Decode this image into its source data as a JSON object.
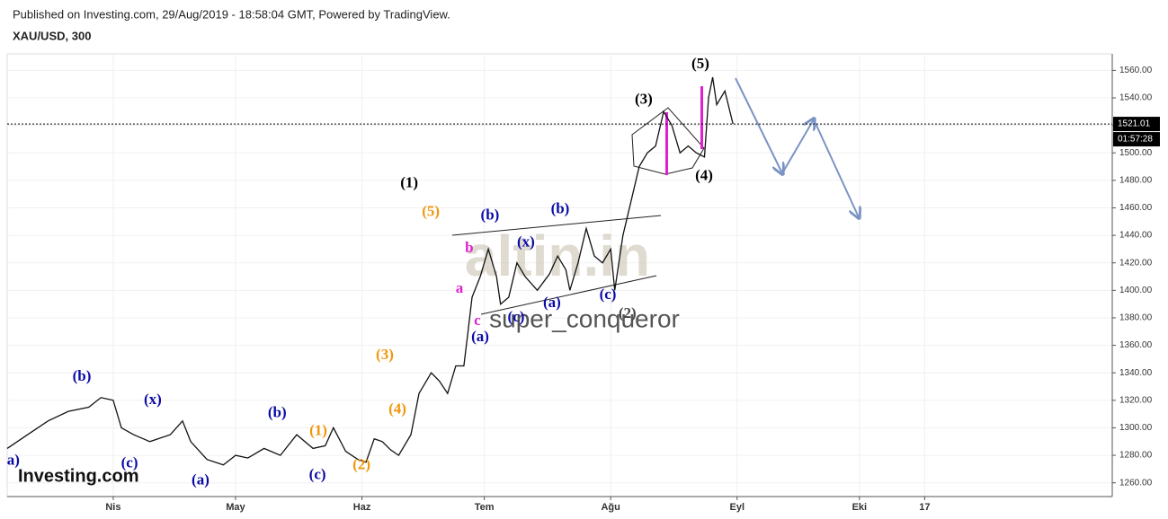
{
  "header": {
    "published": "Published on Investing.com, 29/Aug/2019 - 18:58:04 GMT, Powered by TradingView.",
    "symbol": "XAU/USD, 300"
  },
  "chart_data": {
    "type": "line",
    "xlim": [
      65,
      336
    ],
    "ylim": [
      1250,
      1572
    ],
    "xticks": [
      {
        "value": 91,
        "label": "Nis"
      },
      {
        "value": 121,
        "label": "May"
      },
      {
        "value": 152,
        "label": "Haz"
      },
      {
        "value": 182,
        "label": "Tem"
      },
      {
        "value": 213,
        "label": "Ağu"
      },
      {
        "value": 244,
        "label": "Eyl"
      },
      {
        "value": 274,
        "label": "Eki"
      },
      {
        "value": 290,
        "label": "17"
      }
    ],
    "yticks": [
      {
        "value": 1260,
        "label": "1260.00"
      },
      {
        "value": 1280,
        "label": "1280.00"
      },
      {
        "value": 1300,
        "label": "1300.00"
      },
      {
        "value": 1320,
        "label": "1320.00"
      },
      {
        "value": 1340,
        "label": "1340.00"
      },
      {
        "value": 1360,
        "label": "1360.00"
      },
      {
        "value": 1380,
        "label": "1380.00"
      },
      {
        "value": 1400,
        "label": "1400.00"
      },
      {
        "value": 1420,
        "label": "1420.00"
      },
      {
        "value": 1440,
        "label": "1440.00"
      },
      {
        "value": 1460,
        "label": "1460.00"
      },
      {
        "value": 1480,
        "label": "1480.00"
      },
      {
        "value": 1500,
        "label": "1500.00"
      },
      {
        "value": 1520,
        "label": "1520.00"
      },
      {
        "value": 1540,
        "label": "1540.00"
      },
      {
        "value": 1560,
        "label": "1560.00"
      }
    ],
    "grid": true,
    "series": [
      {
        "color": "#111111",
        "x": [
          65,
          70,
          75,
          80,
          85,
          88,
          91,
          93,
          96,
          100,
          105,
          108,
          110,
          114,
          118,
          121,
          124,
          128,
          132,
          136,
          140,
          143,
          145,
          148,
          151,
          153,
          155,
          157,
          159,
          161,
          164,
          166,
          169,
          171,
          173,
          175,
          177,
          178,
          179,
          181,
          183,
          185,
          186,
          188,
          190,
          192,
          195,
          198,
          200,
          202,
          203,
          205,
          207,
          209,
          211,
          213,
          214,
          216,
          218,
          220,
          222,
          224,
          226,
          228,
          230,
          232,
          234,
          236,
          237,
          238,
          239,
          241,
          243
        ],
        "values": [
          1285,
          1295,
          1305,
          1312,
          1315,
          1322,
          1320,
          1300,
          1295,
          1290,
          1295,
          1305,
          1290,
          1277,
          1273,
          1280,
          1278,
          1285,
          1280,
          1295,
          1285,
          1287,
          1300,
          1283,
          1277,
          1275,
          1292,
          1290,
          1284,
          1280,
          1295,
          1325,
          1340,
          1334,
          1325,
          1345,
          1345,
          1370,
          1395,
          1410,
          1430,
          1410,
          1390,
          1395,
          1420,
          1410,
          1400,
          1412,
          1425,
          1415,
          1400,
          1420,
          1445,
          1425,
          1420,
          1430,
          1400,
          1440,
          1465,
          1490,
          1500,
          1505,
          1530,
          1520,
          1500,
          1505,
          1500,
          1497,
          1540,
          1555,
          1535,
          1545,
          1521
        ]
      }
    ],
    "last_price": 1521.01,
    "countdown": "01:57:28",
    "annotations": [
      {
        "text": "(1)",
        "x": 163.6,
        "y": 1477.5,
        "color": "#000000"
      },
      {
        "text": "(3)",
        "x": 221.1,
        "y": 1538.4,
        "color": "#000000"
      },
      {
        "text": "(5)",
        "x": 235,
        "y": 1564,
        "color": "#000000"
      },
      {
        "text": "(4)",
        "x": 235.9,
        "y": 1482.7,
        "color": "#000000"
      },
      {
        "text": "(2)",
        "x": 217.1,
        "y": 1382.5,
        "color": "#444444"
      },
      {
        "text": "a)",
        "x": 66.5,
        "y": 1275.8,
        "color": "#0a0aa8"
      },
      {
        "text": "(b)",
        "x": 83.3,
        "y": 1336.7,
        "color": "#0a0aa8"
      },
      {
        "text": "(c)",
        "x": 95,
        "y": 1273.8,
        "color": "#0a0aa8"
      },
      {
        "text": "(x)",
        "x": 100.7,
        "y": 1319.7,
        "color": "#0a0aa8"
      },
      {
        "text": "(a)",
        "x": 112.4,
        "y": 1261.4,
        "color": "#0a0aa8"
      },
      {
        "text": "(b)",
        "x": 131.2,
        "y": 1310.5,
        "color": "#0a0aa8"
      },
      {
        "text": "(c)",
        "x": 141.1,
        "y": 1265.3,
        "color": "#0a0aa8"
      },
      {
        "text": "(a)",
        "x": 181,
        "y": 1365.5,
        "color": "#0a0aa8"
      },
      {
        "text": "(b)",
        "x": 183.4,
        "y": 1453.9,
        "color": "#0a0aa8"
      },
      {
        "text": "(x)",
        "x": 192.2,
        "y": 1434.3,
        "color": "#0a0aa8"
      },
      {
        "text": "(c)",
        "x": 189.8,
        "y": 1380,
        "color": "#0a0aa8"
      },
      {
        "text": "(b)",
        "x": 200.6,
        "y": 1458.5,
        "color": "#0a0aa8"
      },
      {
        "text": "(a)",
        "x": 198.6,
        "y": 1390.4,
        "color": "#0a0aa8"
      },
      {
        "text": "(c)",
        "x": 212.3,
        "y": 1396.3,
        "color": "#0a0aa8"
      },
      {
        "text": "(5)",
        "x": 168.9,
        "y": 1456.5,
        "color": "#f0960a"
      },
      {
        "text": "(3)",
        "x": 157.6,
        "y": 1352.4,
        "color": "#f0960a"
      },
      {
        "text": "(4)",
        "x": 160.7,
        "y": 1313.1,
        "color": "#f0960a"
      },
      {
        "text": "(1)",
        "x": 141.3,
        "y": 1297.4,
        "color": "#f0960a"
      },
      {
        "text": "(2)",
        "x": 151.9,
        "y": 1272.5,
        "color": "#f0960a"
      },
      {
        "text": "b",
        "x": 178.3,
        "y": 1430.3,
        "color": "#e020d0"
      },
      {
        "text": "a",
        "x": 175.9,
        "y": 1400.9,
        "color": "#e020d0"
      },
      {
        "text": "c",
        "x": 180.3,
        "y": 1377.3,
        "color": "#e020d0"
      }
    ],
    "watermark": "altin.in",
    "author": "super_conqueror",
    "brand": "Investing.com"
  }
}
